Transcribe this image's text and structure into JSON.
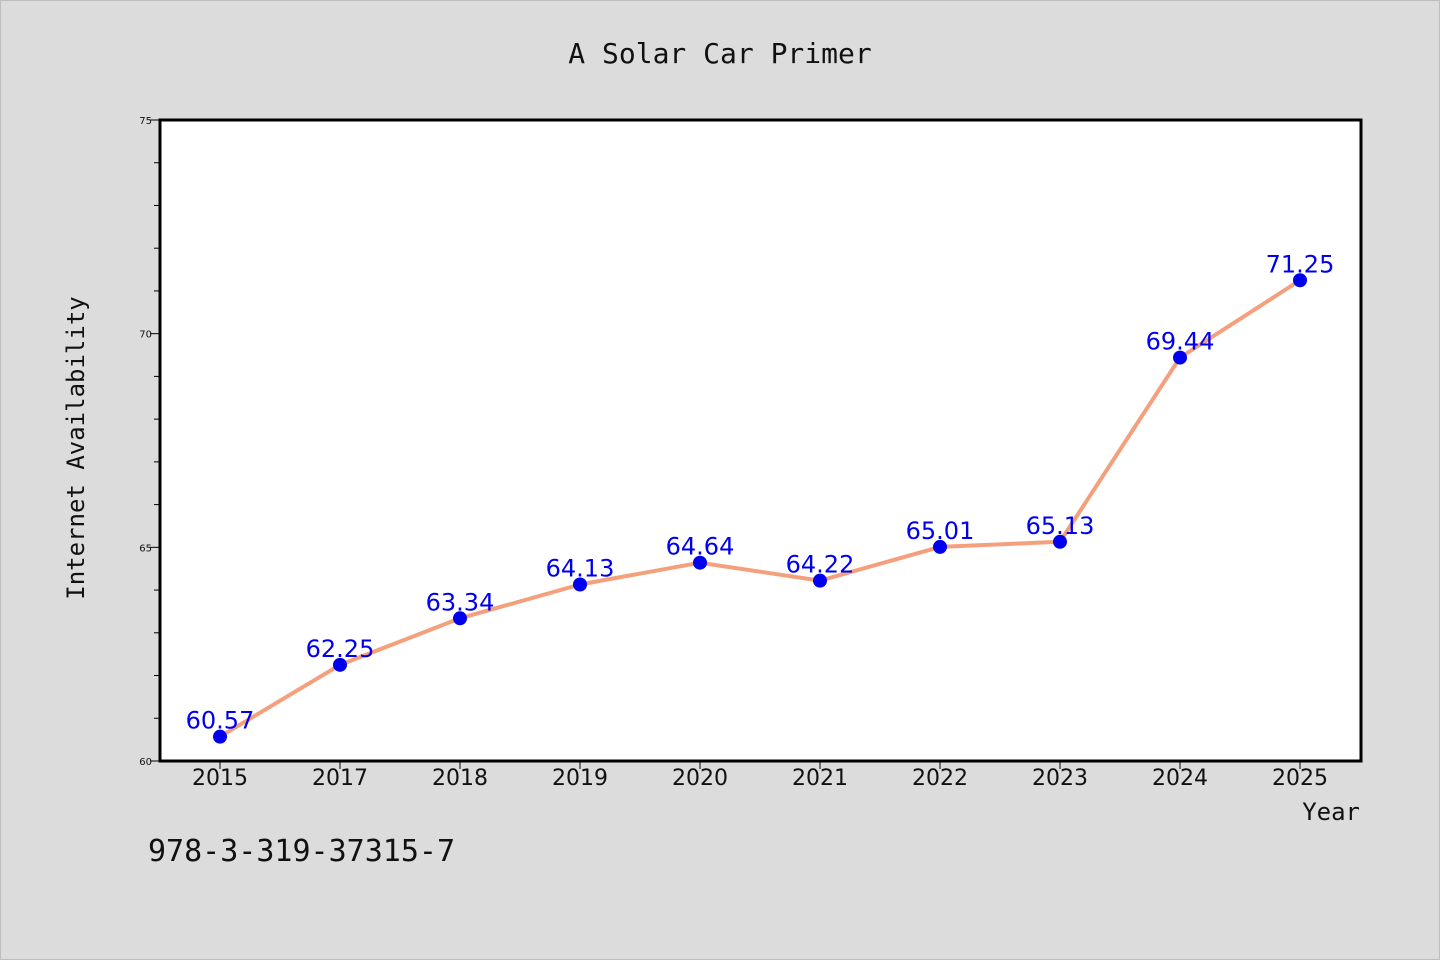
{
  "chart_data": {
    "type": "line",
    "title": "A Solar Car Primer",
    "xlabel": "Year",
    "ylabel": "Internet Availability",
    "categories": [
      "2015",
      "2017",
      "2018",
      "2019",
      "2020",
      "2021",
      "2022",
      "2023",
      "2024",
      "2025"
    ],
    "series": [
      {
        "values": [
          60.57,
          62.25,
          63.34,
          64.13,
          64.64,
          64.22,
          65.01,
          65.13,
          69.44,
          71.25
        ],
        "data_labels": [
          "60.57",
          "62.25",
          "63.34",
          "64.13",
          "64.64",
          "64.22",
          "65.01",
          "65.13",
          "69.44",
          "71.25"
        ],
        "line_color": "#f4a07c",
        "marker_color": "#0000ee"
      }
    ],
    "ylim": [
      60,
      75
    ],
    "y_ticks": [
      "60",
      "65",
      "70",
      "75"
    ],
    "grid": false,
    "legend": "none"
  },
  "footer": {
    "isbn": "978-3-319-37315-7"
  }
}
